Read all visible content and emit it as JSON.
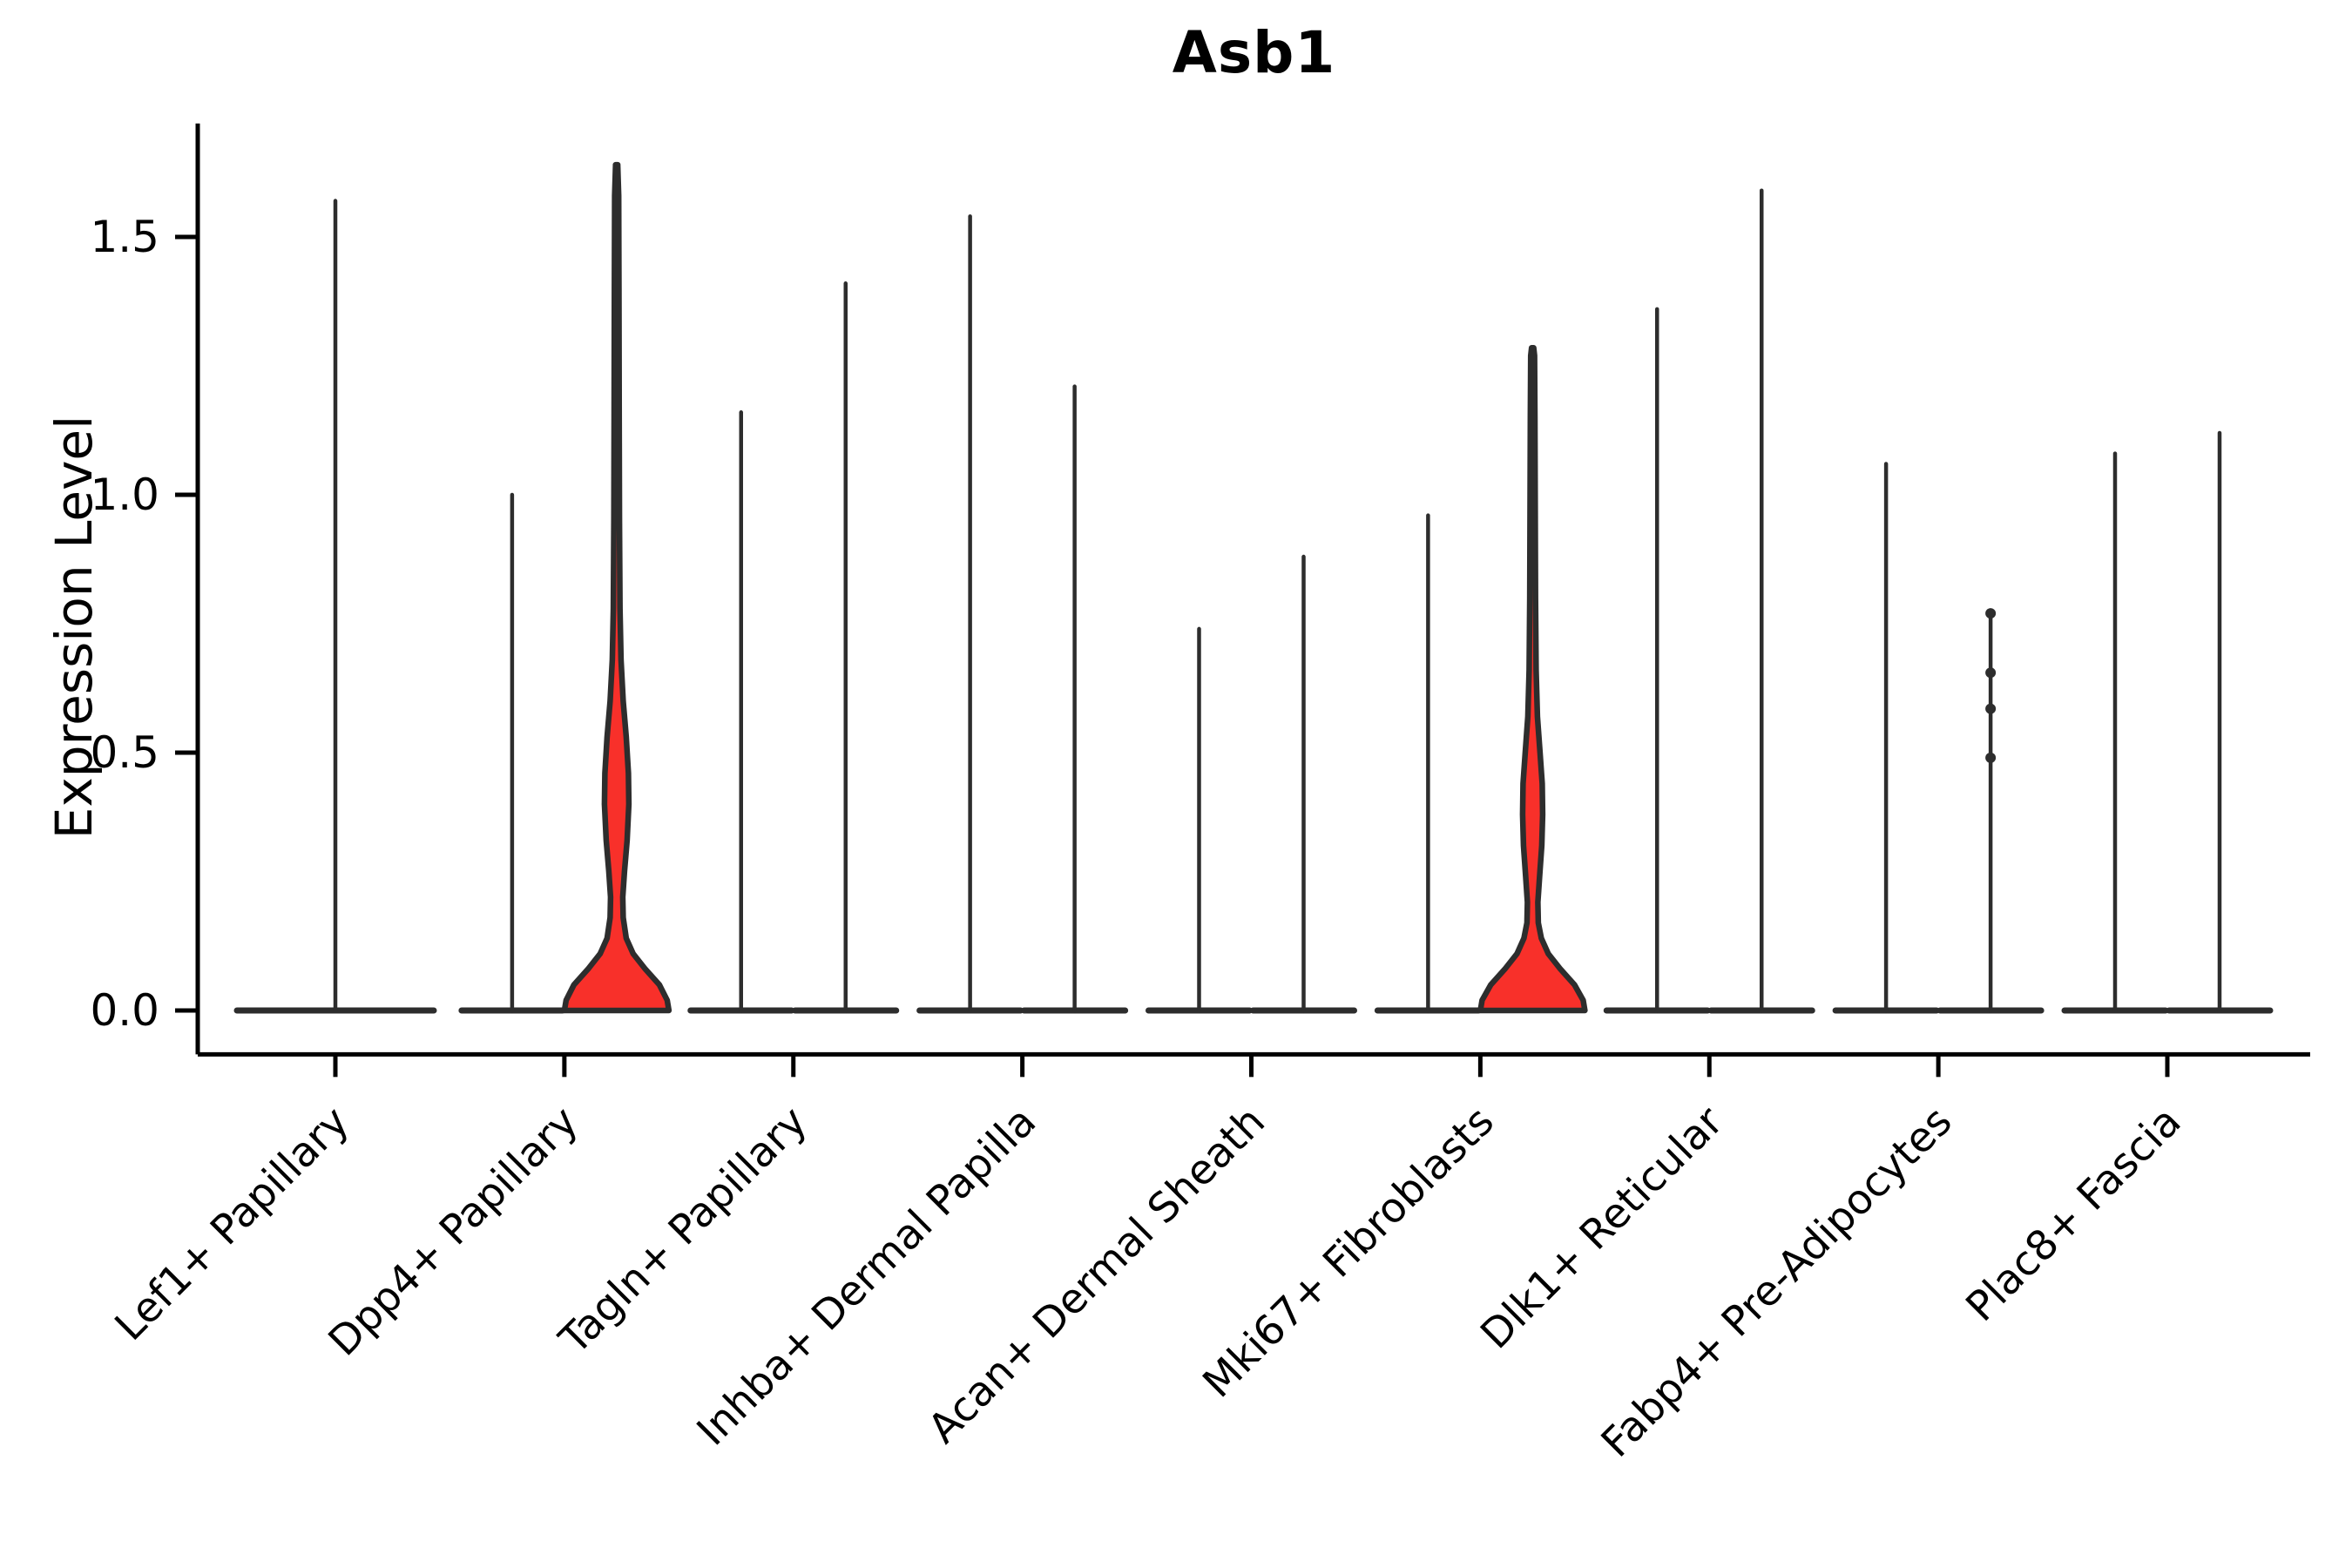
{
  "chart_data": {
    "type": "violin",
    "title": "Asb1",
    "ylabel": "Expression Level",
    "ytick_labels": [
      "0.0",
      "0.5",
      "1.0",
      "1.5"
    ],
    "ytick_values": [
      0.0,
      0.5,
      1.0,
      1.5
    ],
    "ylim": [
      -0.085,
      1.72
    ],
    "grid": false,
    "legend": "none",
    "violin_fill_color": "#f8302a",
    "violin_edge_color": "#2d2d2d",
    "axis_color": "#000000",
    "categories": [
      "Lef1+ Papillary",
      "Dpp4+ Papillary",
      "Tagln+ Papillary",
      "Inhba+ Dermal Papilla",
      "Acan+ Dermal Sheath",
      "Mki67+ Fibroblasts",
      "Dlk1+ Reticular",
      "Fabp4+ Pre-Adipocytes",
      "Plac8+ Fascia"
    ],
    "groups": [
      {
        "label": "Lef1+ Papillary",
        "violins": [
          {
            "pos": "center",
            "max": 1.57,
            "base_halfwidth": 113,
            "shape": "spike"
          }
        ]
      },
      {
        "label": "Dpp4+ Papillary",
        "violins": [
          {
            "pos": "left",
            "max": 1.0,
            "base_halfwidth": 58,
            "shape": "spike"
          },
          {
            "pos": "right",
            "max": 1.64,
            "base_halfwidth": 60,
            "shape": "filled",
            "profile": [
              [
                0,
                60
              ],
              [
                0.02,
                58
              ],
              [
                0.05,
                49
              ],
              [
                0.08,
                33
              ],
              [
                0.11,
                19
              ],
              [
                0.14,
                11
              ],
              [
                0.18,
                7.5
              ],
              [
                0.22,
                7
              ],
              [
                0.27,
                9
              ],
              [
                0.33,
                12
              ],
              [
                0.4,
                14
              ],
              [
                0.46,
                13.5
              ],
              [
                0.53,
                11
              ],
              [
                0.6,
                7.5
              ],
              [
                0.68,
                5
              ],
              [
                0.78,
                3.8
              ],
              [
                0.95,
                3.2
              ],
              [
                1.15,
                2.9
              ],
              [
                1.4,
                2.6
              ],
              [
                1.58,
                2.3
              ],
              [
                1.64,
                1.2
              ]
            ]
          }
        ]
      },
      {
        "label": "Tagln+ Papillary",
        "violins": [
          {
            "pos": "left",
            "max": 1.16,
            "base_halfwidth": 58,
            "shape": "spike"
          },
          {
            "pos": "right",
            "max": 1.41,
            "base_halfwidth": 58,
            "shape": "spike"
          }
        ]
      },
      {
        "label": "Inhba+ Dermal Papilla",
        "violins": [
          {
            "pos": "left",
            "max": 1.54,
            "base_halfwidth": 58,
            "shape": "spike"
          },
          {
            "pos": "right",
            "max": 1.21,
            "base_halfwidth": 58,
            "shape": "spike"
          }
        ]
      },
      {
        "label": "Acan+ Dermal Sheath",
        "violins": [
          {
            "pos": "left",
            "max": 0.74,
            "base_halfwidth": 58,
            "shape": "spike"
          },
          {
            "pos": "right",
            "max": 0.88,
            "base_halfwidth": 58,
            "shape": "spike"
          }
        ]
      },
      {
        "label": "Mki67+ Fibroblasts",
        "violins": [
          {
            "pos": "left",
            "max": 0.96,
            "base_halfwidth": 58,
            "shape": "spike"
          },
          {
            "pos": "right",
            "max": 1.285,
            "base_halfwidth": 60,
            "shape": "filled",
            "profile": [
              [
                0,
                60
              ],
              [
                0.02,
                58
              ],
              [
                0.05,
                48
              ],
              [
                0.08,
                32
              ],
              [
                0.11,
                18
              ],
              [
                0.14,
                10
              ],
              [
                0.17,
                6.5
              ],
              [
                0.21,
                6
              ],
              [
                0.26,
                8
              ],
              [
                0.32,
                10.5
              ],
              [
                0.38,
                11.5
              ],
              [
                0.44,
                11
              ],
              [
                0.5,
                8.5
              ],
              [
                0.57,
                5.5
              ],
              [
                0.66,
                4
              ],
              [
                0.8,
                3.3
              ],
              [
                1.0,
                2.9
              ],
              [
                1.15,
                2.6
              ],
              [
                1.27,
                2.2
              ],
              [
                1.285,
                1.2
              ]
            ]
          }
        ]
      },
      {
        "label": "Dlk1+ Reticular",
        "violins": [
          {
            "pos": "left",
            "max": 1.36,
            "base_halfwidth": 58,
            "shape": "spike"
          },
          {
            "pos": "right",
            "max": 1.59,
            "base_halfwidth": 58,
            "shape": "spike"
          }
        ]
      },
      {
        "label": "Fabp4+ Pre-Adipocytes",
        "violins": [
          {
            "pos": "left",
            "max": 1.06,
            "base_halfwidth": 58,
            "shape": "spike"
          },
          {
            "pos": "right",
            "max": 0.77,
            "base_halfwidth": 58,
            "shape": "spike",
            "points": [
              0.77,
              0.655,
              0.585,
              0.49
            ]
          }
        ]
      },
      {
        "label": "Plac8+ Fascia",
        "violins": [
          {
            "pos": "left",
            "max": 1.08,
            "base_halfwidth": 58,
            "shape": "spike"
          },
          {
            "pos": "right",
            "max": 1.12,
            "base_halfwidth": 58,
            "shape": "spike"
          }
        ]
      }
    ]
  }
}
